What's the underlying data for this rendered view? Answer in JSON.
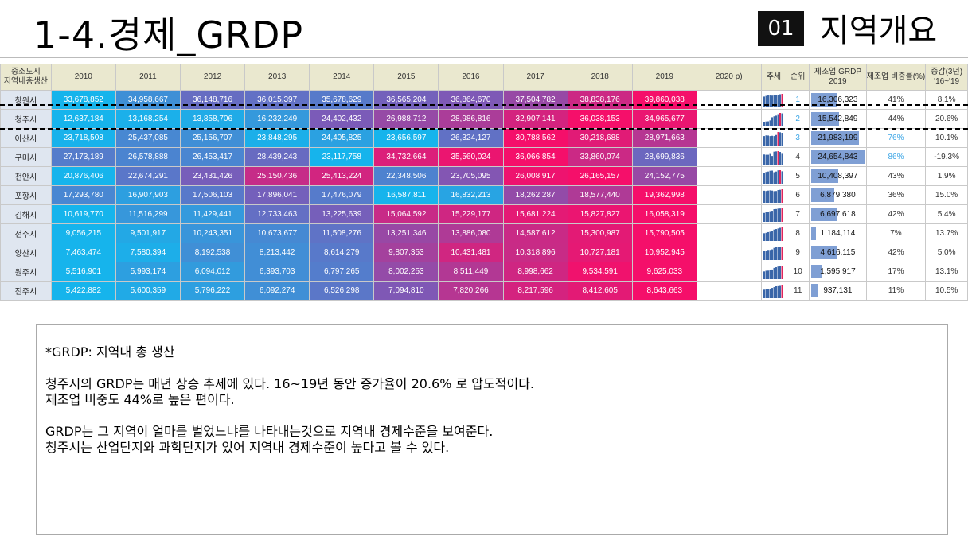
{
  "header": {
    "title": "1-4.경제_GRDP",
    "badge": "01",
    "section": "지역개요"
  },
  "table": {
    "columns": [
      "중소도시\n지역내총생산",
      "2010",
      "2011",
      "2012",
      "2013",
      "2014",
      "2015",
      "2016",
      "2017",
      "2018",
      "2019",
      "2020 p)",
      "추세",
      "순위",
      "제조업 GRDP\n2019",
      "제조업 비중률(%)",
      "증감(3년)\n'16~'19"
    ],
    "rows": [
      {
        "name": "창원시",
        "values": [
          "33,678,852",
          "34,958,667",
          "36,148,716",
          "36,015,397",
          "35,678,629",
          "36,565,204",
          "36,864,670",
          "37,504,782",
          "38,838,176",
          "39,860,038"
        ],
        "rank": "1",
        "mfg": "16,306,323",
        "mfg_share": 0.41,
        "share": "41%",
        "change": "8.1%",
        "spark": [
          0.8,
          0.85,
          0.88,
          0.88,
          0.87,
          0.9,
          0.92,
          0.94,
          0.97,
          1
        ]
      },
      {
        "name": "청주시",
        "values": [
          "12,637,184",
          "13,168,254",
          "13,858,706",
          "16,232,249",
          "24,402,432",
          "26,988,712",
          "28,986,816",
          "32,907,141",
          "36,038,153",
          "34,965,677"
        ],
        "rank": "2",
        "mfg": "15,542,849",
        "mfg_share": 0.44,
        "share": "44%",
        "change": "20.6%",
        "spark": [
          0.35,
          0.37,
          0.38,
          0.45,
          0.68,
          0.75,
          0.8,
          0.91,
          1,
          0.97
        ]
      },
      {
        "name": "아산시",
        "values": [
          "23,718,508",
          "25,437,085",
          "25,156,707",
          "23,848,295",
          "24,405,825",
          "23,656,597",
          "26,324,127",
          "30,788,562",
          "30,218,688",
          "28,971,663"
        ],
        "rank": "3",
        "mfg": "21,983,199",
        "mfg_share": 0.76,
        "share": "76%",
        "change": "10.1%",
        "spark": [
          0.7,
          0.75,
          0.74,
          0.7,
          0.72,
          0.7,
          0.78,
          1,
          0.98,
          0.94
        ]
      },
      {
        "name": "구미시",
        "values": [
          "27,173,189",
          "26,578,888",
          "26,453,417",
          "28,439,243",
          "23,117,758",
          "34,732,664",
          "35,560,024",
          "36,066,854",
          "33,860,074",
          "28,699,836"
        ],
        "rank": "4",
        "mfg": "24,654,843",
        "mfg_share": 0.86,
        "share": "86%",
        "change": "-19.3%",
        "spark": [
          0.75,
          0.73,
          0.73,
          0.79,
          0.64,
          0.96,
          0.98,
          1,
          0.94,
          0.8
        ]
      },
      {
        "name": "천안시",
        "values": [
          "20,876,406",
          "22,674,291",
          "23,431,426",
          "25,150,436",
          "25,413,224",
          "22,348,506",
          "23,705,095",
          "26,008,917",
          "26,165,157",
          "24,152,775"
        ],
        "rank": "5",
        "mfg": "10,408,397",
        "mfg_share": 0.43,
        "share": "43%",
        "change": "1.9%",
        "spark": [
          0.8,
          0.87,
          0.9,
          0.96,
          0.97,
          0.85,
          0.9,
          0.99,
          1,
          0.92
        ]
      },
      {
        "name": "포항시",
        "values": [
          "17,293,780",
          "16,907,903",
          "17,506,103",
          "17,896,041",
          "17,476,079",
          "16,587,811",
          "16,832,213",
          "18,262,287",
          "18,577,440",
          "19,362,998"
        ],
        "rank": "6",
        "mfg": "6,879,380",
        "mfg_share": 0.36,
        "share": "36%",
        "change": "15.0%",
        "spark": [
          0.89,
          0.87,
          0.9,
          0.92,
          0.9,
          0.86,
          0.87,
          0.94,
          0.96,
          1
        ]
      },
      {
        "name": "김해시",
        "values": [
          "10,619,770",
          "11,516,299",
          "11,429,441",
          "12,733,463",
          "13,225,639",
          "15,064,592",
          "15,229,177",
          "15,681,224",
          "15,827,827",
          "16,058,319"
        ],
        "rank": "7",
        "mfg": "6,697,618",
        "mfg_share": 0.42,
        "share": "42%",
        "change": "5.4%",
        "spark": [
          0.66,
          0.72,
          0.71,
          0.79,
          0.82,
          0.94,
          0.95,
          0.98,
          0.99,
          1
        ]
      },
      {
        "name": "전주시",
        "values": [
          "9,056,215",
          "9,501,917",
          "10,243,351",
          "10,673,677",
          "11,508,276",
          "13,251,346",
          "13,886,080",
          "14,587,612",
          "15,300,987",
          "15,790,505"
        ],
        "rank": "8",
        "mfg": "1,184,114",
        "mfg_share": 0.07,
        "share": "7%",
        "change": "13.7%",
        "spark": [
          0.57,
          0.6,
          0.65,
          0.68,
          0.73,
          0.84,
          0.88,
          0.92,
          0.97,
          1
        ]
      },
      {
        "name": "양산시",
        "values": [
          "7,463,474",
          "7,580,394",
          "8,192,538",
          "8,213,442",
          "8,614,279",
          "9,807,353",
          "10,431,481",
          "10,318,896",
          "10,727,181",
          "10,952,945"
        ],
        "rank": "9",
        "mfg": "4,616,115",
        "mfg_share": 0.42,
        "share": "42%",
        "change": "5.0%",
        "spark": [
          0.68,
          0.69,
          0.75,
          0.75,
          0.79,
          0.9,
          0.95,
          0.94,
          0.98,
          1
        ]
      },
      {
        "name": "원주시",
        "values": [
          "5,516,901",
          "5,993,174",
          "6,094,012",
          "6,393,703",
          "6,797,265",
          "8,002,253",
          "8,511,449",
          "8,998,662",
          "9,534,591",
          "9,625,033"
        ],
        "rank": "10",
        "mfg": "1,595,917",
        "mfg_share": 0.17,
        "share": "17%",
        "change": "13.1%",
        "spark": [
          0.57,
          0.62,
          0.63,
          0.66,
          0.71,
          0.83,
          0.88,
          0.93,
          0.99,
          1
        ]
      },
      {
        "name": "진주시",
        "values": [
          "5,422,882",
          "5,600,359",
          "5,796,222",
          "6,092,274",
          "6,526,298",
          "7,094,810",
          "7,820,266",
          "8,217,596",
          "8,412,605",
          "8,643,663"
        ],
        "rank": "11",
        "mfg": "937,131",
        "mfg_share": 0.11,
        "share": "11%",
        "change": "10.5%",
        "spark": [
          0.63,
          0.65,
          0.67,
          0.7,
          0.76,
          0.82,
          0.9,
          0.95,
          0.97,
          1
        ]
      }
    ],
    "gradient": {
      "low": "#16b4ec",
      "mid": "#7a5bb8",
      "high": "#f50f6a"
    },
    "spark_color": "#3a66a8",
    "spark_max_color": "#e0245e"
  },
  "note": {
    "lines": [
      "*GRDP: 지역내 총 생산",
      "",
      "청주시의 GRDP는 매년 상승 추세에 있다. 16~19년 동안 증가율이 20.6% 로 압도적이다.",
      "제조업 비중도 44%로 높은 편이다.",
      "",
      "GRDP는 그 지역이 얼마를 벌었느냐를 나타내는것으로 지역내 경제수준을 보여준다.",
      "청주시는 산업단지와 과학단지가 있어 지역내 경제수준이 높다고 볼 수 있다."
    ]
  }
}
